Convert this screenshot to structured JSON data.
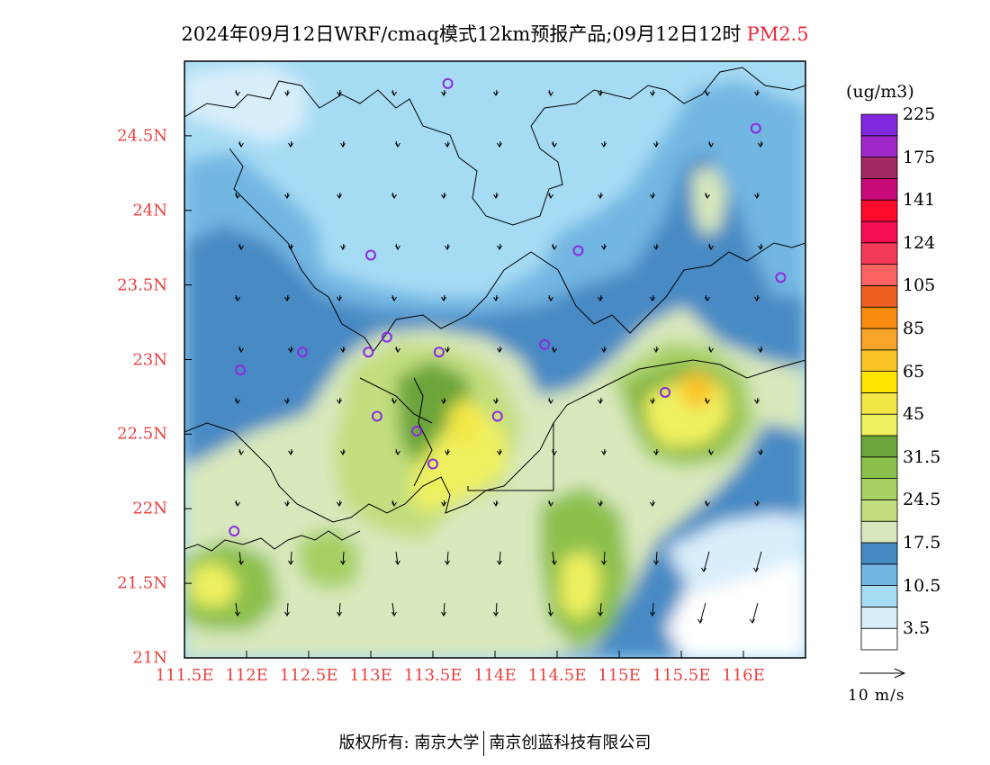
{
  "title": {
    "text": "2024年09月12日WRF/cmaq模式12km预报产品;09月12日12时",
    "parameter": "PM2.5"
  },
  "axes": {
    "y_ticks": [
      "24.5N",
      "24N",
      "23.5N",
      "23N",
      "22.5N",
      "22N",
      "21.5N",
      "21N"
    ],
    "x_ticks": [
      "111.5E",
      "112E",
      "112.5E",
      "113E",
      "113.5E",
      "114E",
      "114.5E",
      "115E",
      "115.5E",
      "116E"
    ],
    "lon_range": [
      111.5,
      116.5
    ],
    "lat_range": [
      21,
      25
    ]
  },
  "colorbar": {
    "unit": "(ug/m3)",
    "labels": [
      "3.5",
      "10.5",
      "17.5",
      "24.5",
      "31.5",
      "45",
      "65",
      "85",
      "105",
      "124",
      "141",
      "175",
      "225"
    ],
    "colors": [
      "#ffffff",
      "#d9eefb",
      "#a6dbf4",
      "#72b6e2",
      "#468ac4",
      "#d8e8bc",
      "#c2de7e",
      "#a6d064",
      "#8cc04c",
      "#6aa43a",
      "#eef060",
      "#f3e746",
      "#ffe600",
      "#fac428",
      "#f7a428",
      "#f88c10",
      "#ee6020",
      "#fc6464",
      "#f43c58",
      "#f40d50",
      "#ff0a2a",
      "#c80a78",
      "#a42864",
      "#a028c8",
      "#8228dc"
    ]
  },
  "wind_reference": {
    "label": "10 m/s"
  },
  "monitoring_stations": [
    {
      "lon": 113.62,
      "lat": 24.85
    },
    {
      "lon": 116.1,
      "lat": 24.55
    },
    {
      "lon": 113.0,
      "lat": 23.7
    },
    {
      "lon": 114.67,
      "lat": 23.73
    },
    {
      "lon": 116.3,
      "lat": 23.55
    },
    {
      "lon": 113.13,
      "lat": 23.15
    },
    {
      "lon": 112.98,
      "lat": 23.05
    },
    {
      "lon": 113.55,
      "lat": 23.05
    },
    {
      "lon": 114.4,
      "lat": 23.1
    },
    {
      "lon": 112.45,
      "lat": 23.05
    },
    {
      "lon": 111.95,
      "lat": 22.93
    },
    {
      "lon": 115.37,
      "lat": 22.78
    },
    {
      "lon": 113.05,
      "lat": 22.62
    },
    {
      "lon": 113.37,
      "lat": 22.52
    },
    {
      "lon": 114.02,
      "lat": 22.62
    },
    {
      "lon": 113.5,
      "lat": 22.3
    },
    {
      "lon": 111.9,
      "lat": 21.85
    }
  ],
  "footer": {
    "left": "版权所有: 南京大学",
    "right": "南京创蓝科技有限公司"
  }
}
